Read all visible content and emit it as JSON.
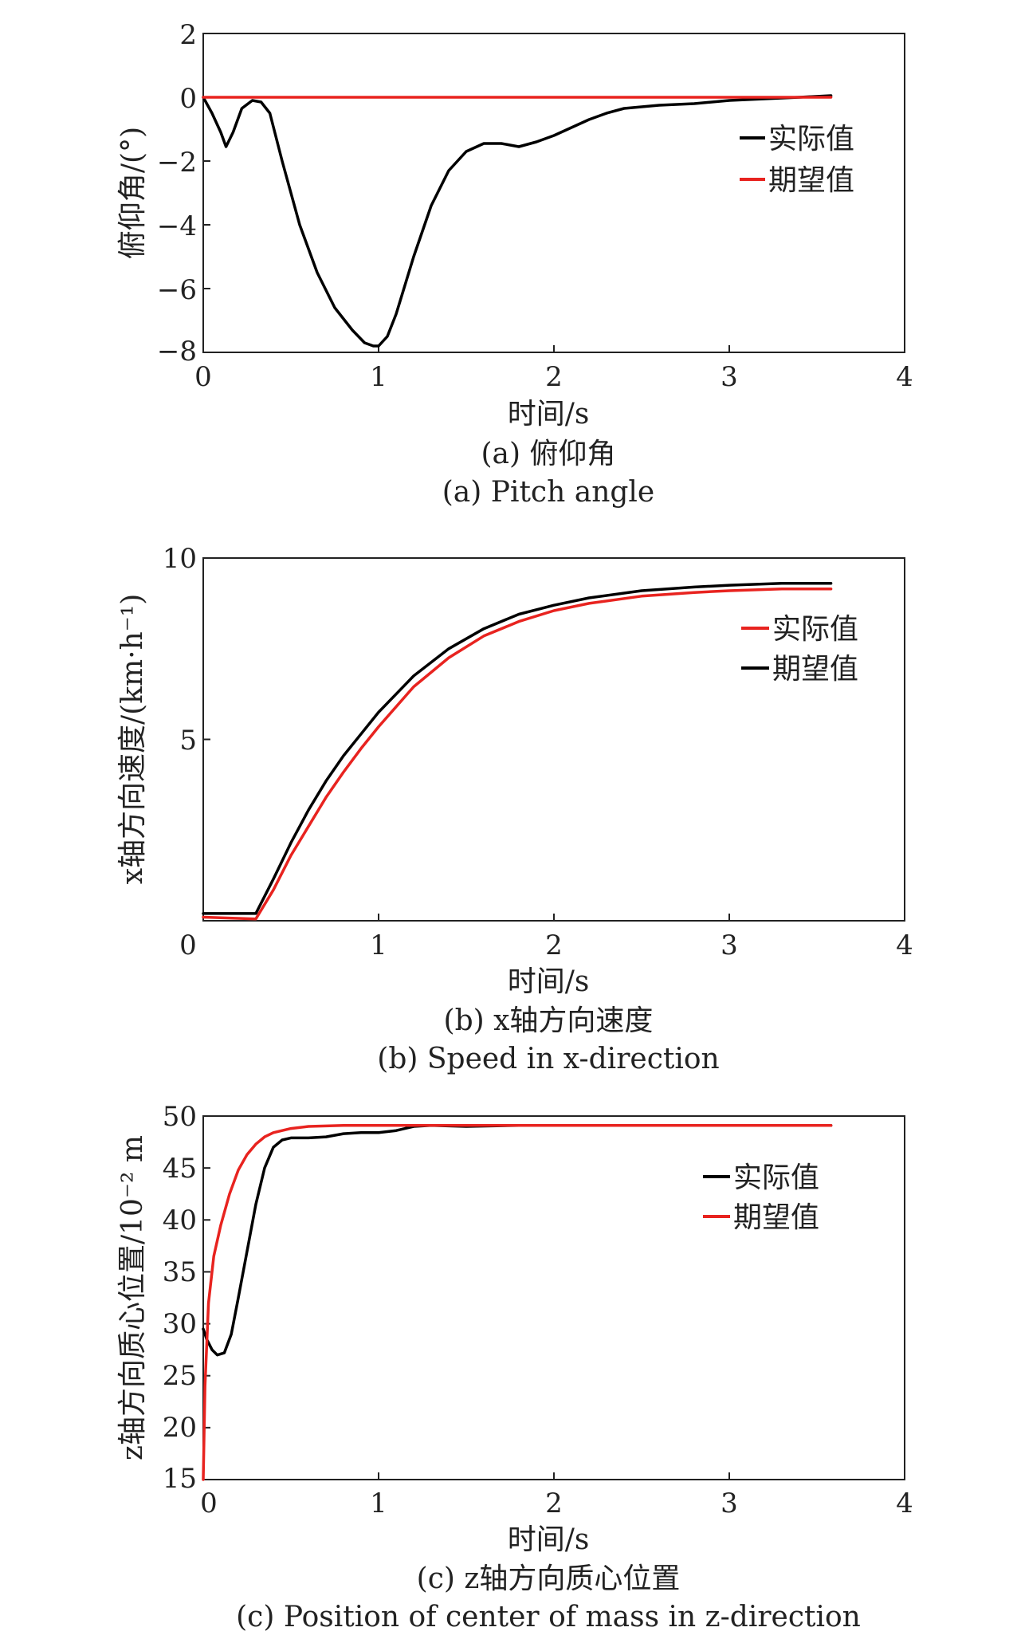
{
  "chart_data": [
    {
      "type": "line",
      "xlabel": "时间/s",
      "ylabel": "俯仰角/(°)",
      "caption_zh": "(a) 俯仰角",
      "caption_en": "(a) Pitch angle",
      "xlim": [
        0,
        4
      ],
      "ylim": [
        -8,
        2
      ],
      "xticks": [
        "0",
        "1",
        "2",
        "3",
        "4"
      ],
      "yticks": [
        "2",
        "0",
        "−2",
        "−4",
        "−6",
        "−8"
      ],
      "legend_position": "top-right",
      "series": [
        {
          "name": "实际值",
          "color": "#000000",
          "x": [
            0,
            0.05,
            0.1,
            0.13,
            0.17,
            0.22,
            0.28,
            0.33,
            0.38,
            0.45,
            0.55,
            0.65,
            0.75,
            0.85,
            0.92,
            0.97,
            1.0,
            1.05,
            1.1,
            1.2,
            1.3,
            1.4,
            1.5,
            1.6,
            1.7,
            1.8,
            1.9,
            2.0,
            2.1,
            2.2,
            2.3,
            2.4,
            2.5,
            2.6,
            2.8,
            3.0,
            3.2,
            3.4,
            3.58
          ],
          "y": [
            0,
            -0.5,
            -1.1,
            -1.55,
            -1.1,
            -0.35,
            -0.1,
            -0.15,
            -0.5,
            -2.0,
            -4.0,
            -5.5,
            -6.6,
            -7.3,
            -7.7,
            -7.8,
            -7.8,
            -7.5,
            -6.8,
            -5.0,
            -3.4,
            -2.3,
            -1.7,
            -1.45,
            -1.45,
            -1.55,
            -1.4,
            -1.2,
            -0.95,
            -0.7,
            -0.5,
            -0.35,
            -0.3,
            -0.25,
            -0.2,
            -0.1,
            -0.05,
            0.0,
            0.05
          ]
        },
        {
          "name": "期望值",
          "color": "#e8231f",
          "x": [
            0,
            3.58
          ],
          "y": [
            0,
            0
          ]
        }
      ]
    },
    {
      "type": "line",
      "xlabel": "时间/s",
      "ylabel": "x轴方向速度/(km·h⁻¹)",
      "caption_zh": "(b) x轴方向速度",
      "caption_en": "(b) Speed in x-direction",
      "xlim": [
        0,
        4
      ],
      "ylim": [
        0,
        10
      ],
      "xticks": [
        "0",
        "1",
        "2",
        "3",
        "4"
      ],
      "yticks": [
        "10",
        "5",
        "0"
      ],
      "legend_position": "top-right",
      "series": [
        {
          "name": "实际值",
          "color": "#e8231f",
          "x": [
            0,
            0.3,
            0.4,
            0.5,
            0.6,
            0.7,
            0.8,
            0.9,
            1.0,
            1.2,
            1.4,
            1.6,
            1.8,
            2.0,
            2.2,
            2.5,
            2.8,
            3.0,
            3.3,
            3.58
          ],
          "y": [
            0.1,
            0.05,
            0.85,
            1.8,
            2.6,
            3.4,
            4.1,
            4.75,
            5.35,
            6.45,
            7.25,
            7.85,
            8.25,
            8.55,
            8.75,
            8.95,
            9.05,
            9.1,
            9.15,
            9.15
          ]
        },
        {
          "name": "期望值",
          "color": "#000000",
          "x": [
            0,
            0.3,
            0.4,
            0.5,
            0.6,
            0.7,
            0.8,
            0.9,
            1.0,
            1.2,
            1.4,
            1.6,
            1.8,
            2.0,
            2.2,
            2.5,
            2.8,
            3.0,
            3.3,
            3.58
          ],
          "y": [
            0.2,
            0.2,
            1.15,
            2.15,
            3.05,
            3.85,
            4.55,
            5.15,
            5.75,
            6.75,
            7.5,
            8.05,
            8.45,
            8.7,
            8.9,
            9.1,
            9.2,
            9.25,
            9.3,
            9.3
          ]
        }
      ]
    },
    {
      "type": "line",
      "xlabel": "时间/s",
      "ylabel": "z轴方向质心位置/10⁻² m",
      "caption_zh": "(c) z轴方向质心位置",
      "caption_en": "(c) Position of center of mass in z-direction",
      "xlim": [
        0,
        4
      ],
      "ylim": [
        15,
        50
      ],
      "xticks": [
        "0",
        "1",
        "2",
        "3",
        "4"
      ],
      "yticks": [
        "50",
        "45",
        "40",
        "35",
        "30",
        "25",
        "20",
        "15"
      ],
      "legend_position": "top-right",
      "series": [
        {
          "name": "实际值",
          "color": "#000000",
          "x": [
            0,
            0.02,
            0.05,
            0.08,
            0.12,
            0.16,
            0.2,
            0.25,
            0.3,
            0.35,
            0.4,
            0.45,
            0.5,
            0.6,
            0.7,
            0.8,
            0.9,
            1.0,
            1.1,
            1.2,
            1.3,
            1.5,
            1.8,
            2.2,
            2.6,
            3.0,
            3.4,
            3.58
          ],
          "y": [
            29.5,
            28.5,
            27.5,
            27.0,
            27.2,
            29.0,
            32.5,
            37.0,
            41.5,
            45.0,
            47.0,
            47.7,
            47.9,
            47.9,
            48.0,
            48.3,
            48.4,
            48.4,
            48.6,
            49.0,
            49.1,
            49.0,
            49.1,
            49.1,
            49.1,
            49.1,
            49.1,
            49.1
          ]
        },
        {
          "name": "期望值",
          "color": "#e8231f",
          "x": [
            0,
            0.01,
            0.03,
            0.06,
            0.1,
            0.15,
            0.2,
            0.25,
            0.3,
            0.35,
            0.4,
            0.5,
            0.6,
            0.7,
            0.8,
            1.0,
            1.5,
            2.0,
            3.0,
            3.58
          ],
          "y": [
            15,
            24,
            32,
            36.5,
            39.5,
            42.5,
            44.8,
            46.3,
            47.3,
            48.0,
            48.4,
            48.8,
            49.0,
            49.05,
            49.1,
            49.1,
            49.1,
            49.1,
            49.1,
            49.1
          ]
        }
      ]
    }
  ]
}
